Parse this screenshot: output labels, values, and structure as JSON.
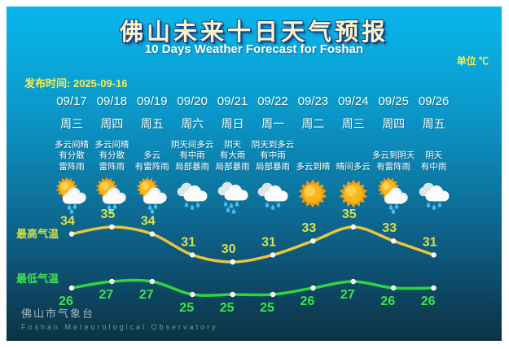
{
  "header": {
    "title": "佛山未来十日天气预报",
    "subtitle": "10 Days Weather Forecast for Foshan",
    "unit": "单位 ℃",
    "publish_label": "发布时间:",
    "publish_date": "2025-09-16"
  },
  "chart_labels": {
    "high": "最高气温",
    "low": "最低气温"
  },
  "days": [
    {
      "date": "09/17",
      "weekday": "周三",
      "desc": [
        "多云间晴",
        "有分散",
        "雷阵雨"
      ],
      "icon": "sun-cloud-rain",
      "high": 34,
      "low": 26
    },
    {
      "date": "09/18",
      "weekday": "周四",
      "desc": [
        "多云间晴",
        "有分散",
        "雷阵雨"
      ],
      "icon": "sun-cloud-rain",
      "high": 35,
      "low": 27
    },
    {
      "date": "09/19",
      "weekday": "周五",
      "desc": [
        "多云",
        "有雷阵雨"
      ],
      "icon": "sun-cloud-rain",
      "high": 34,
      "low": 27
    },
    {
      "date": "09/20",
      "weekday": "周六",
      "desc": [
        "阴天间多云",
        "有中雨",
        "局部暴雨"
      ],
      "icon": "cloud-rain",
      "high": 31,
      "low": 25
    },
    {
      "date": "09/21",
      "weekday": "周日",
      "desc": [
        "阴天",
        "有大雨",
        "局部暴雨"
      ],
      "icon": "cloud-heavy-rain",
      "high": 30,
      "low": 25
    },
    {
      "date": "09/22",
      "weekday": "周一",
      "desc": [
        "阴天到多云",
        "有中雨",
        "局部暴雨"
      ],
      "icon": "cloud-rain",
      "high": 31,
      "low": 25
    },
    {
      "date": "09/23",
      "weekday": "周二",
      "desc": [
        "多云到晴"
      ],
      "icon": "sunny",
      "high": 33,
      "low": 26
    },
    {
      "date": "09/24",
      "weekday": "周三",
      "desc": [
        "晴间多云"
      ],
      "icon": "sunny",
      "high": 35,
      "low": 27
    },
    {
      "date": "09/25",
      "weekday": "周四",
      "desc": [
        "多云到阴天",
        "有雷阵雨"
      ],
      "icon": "sun-cloud-rain",
      "high": 33,
      "low": 26
    },
    {
      "date": "09/26",
      "weekday": "周五",
      "desc": [
        "阴天",
        "有中雨"
      ],
      "icon": "cloud-rain",
      "high": 31,
      "low": 26
    }
  ],
  "footer": {
    "name_cn": "佛山市气象台",
    "name_en": "Foshan Meteorological Observatory"
  },
  "colors": {
    "high_line": "#e9c53e",
    "high_text": "#d9e14c",
    "low_line": "#2ed53c",
    "low_text": "#3ae54a",
    "dot": "#ffffff",
    "accent_yellow": "#ffe94e"
  },
  "chart_data": {
    "type": "line",
    "title": "佛山未来十日天气预报",
    "subtitle": "10 Days Weather Forecast for Foshan",
    "ylabel": "℃",
    "categories": [
      "09/17",
      "09/18",
      "09/19",
      "09/20",
      "09/21",
      "09/22",
      "09/23",
      "09/24",
      "09/25",
      "09/26"
    ],
    "series": [
      {
        "name": "最高气温",
        "values": [
          34,
          35,
          34,
          31,
          30,
          31,
          33,
          35,
          33,
          31
        ],
        "color": "#e9c53e"
      },
      {
        "name": "最低气温",
        "values": [
          26,
          27,
          27,
          25,
          25,
          25,
          26,
          27,
          26,
          26
        ],
        "color": "#2ed53c"
      }
    ],
    "legend_position": "left",
    "grid": false,
    "data_labels": true
  }
}
